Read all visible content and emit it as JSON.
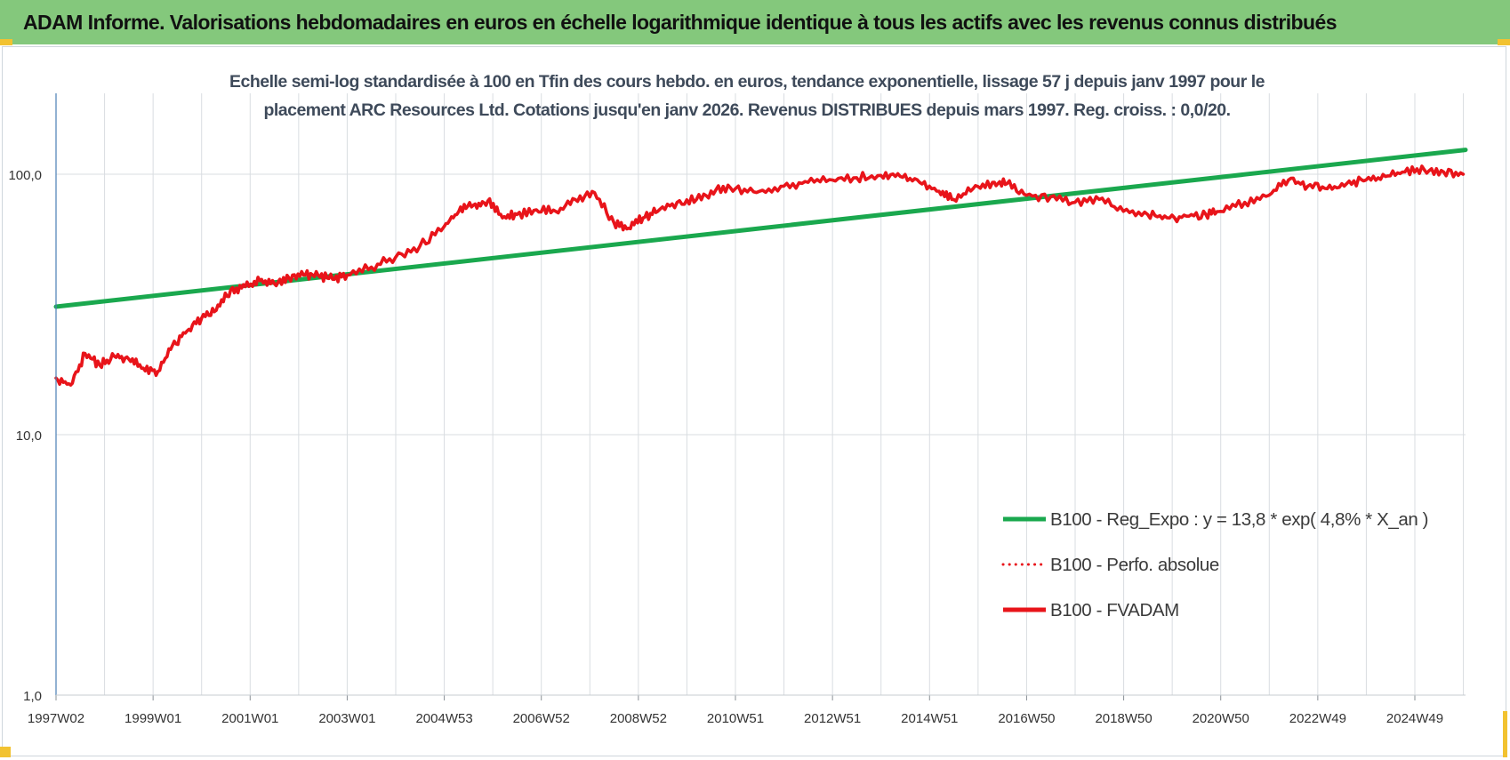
{
  "header": {
    "title": "ADAM Informe. Valorisations hebdomadaires en euros en échelle logarithmique identique à tous les actifs avec les revenus connus distribués"
  },
  "colors": {
    "banner": "#84c87c",
    "trend": "#1aa84e",
    "fvadam": "#e8141a",
    "perfo": "#e8141a",
    "grid": "#d9dde1",
    "axis_text": "#333333",
    "corner": "#f2c230"
  },
  "chart_data": {
    "type": "line",
    "title_lines": [
      "Echelle semi-log standardisée à 100 en Tfin des cours hebdo. en euros, tendance exponentielle, lissage 57 j depuis janv 1997 pour le",
      "placement ARC Resources Ltd. Cotations jusqu'en janv 2026. Revenus DISTRIBUES depuis mars 1997. Reg. croiss. : 0,0/20."
    ],
    "y_scale": "log",
    "ylim": [
      1,
      200
    ],
    "yticks": [
      {
        "value": 1,
        "label": "1,0"
      },
      {
        "value": 10,
        "label": "10,0"
      },
      {
        "value": 100,
        "label": "100,0"
      }
    ],
    "xlim": [
      1997.0,
      2026.05
    ],
    "xtick_labels": [
      "1997W02",
      "1999W01",
      "2001W01",
      "2003W01",
      "2004W53",
      "2006W52",
      "2008W52",
      "2010W51",
      "2012W51",
      "2014W51",
      "2016W50",
      "2018W50",
      "2020W50",
      "2022W49",
      "2024W49"
    ],
    "grid": true,
    "legend_position": "bottom-right",
    "series": [
      {
        "name": "B100 - Reg_Expo : y = 13,8 * exp( 4,8% *  X_an )",
        "style": "solid-green",
        "x": [
          1997.0,
          2026.05
        ],
        "y": [
          31,
          124
        ]
      },
      {
        "name": "B100 - Perfo. absolue",
        "style": "dotted-red",
        "x": [],
        "y": []
      },
      {
        "name": "B100 - FVADAM",
        "style": "solid-red",
        "x": [
          1997.0,
          1997.3,
          1997.6,
          1997.9,
          1998.2,
          1998.5,
          1998.8,
          1999.1,
          1999.4,
          1999.7,
          2000.0,
          2000.3,
          2000.6,
          2000.9,
          2001.2,
          2001.5,
          2001.8,
          2002.1,
          2002.4,
          2002.7,
          2003.0,
          2003.5,
          2004.0,
          2004.5,
          2005.0,
          2005.3,
          2005.6,
          2005.9,
          2006.2,
          2006.5,
          2006.9,
          2007.3,
          2007.7,
          2008.1,
          2008.5,
          2008.8,
          2009.1,
          2009.4,
          2009.8,
          2010.2,
          2010.6,
          2011.0,
          2011.5,
          2012.0,
          2012.5,
          2013.0,
          2013.5,
          2014.0,
          2014.4,
          2014.8,
          2015.2,
          2015.5,
          2015.9,
          2016.3,
          2016.6,
          2017.0,
          2017.5,
          2018.0,
          2018.5,
          2019.0,
          2019.5,
          2019.9,
          2020.3,
          2020.7,
          2021.0,
          2021.5,
          2022.0,
          2022.4,
          2022.8,
          2023.2,
          2023.6,
          2024.0,
          2024.4,
          2024.8,
          2025.2,
          2025.6,
          2026.0
        ],
        "y": [
          16.5,
          15.5,
          20.5,
          18.5,
          20,
          19.5,
          18,
          17.5,
          22,
          25,
          28,
          30,
          36,
          37,
          39,
          38,
          40,
          41,
          41,
          39.5,
          41,
          44,
          48,
          53,
          63,
          72,
          76,
          79,
          68,
          70,
          73,
          72,
          80,
          85,
          65,
          62,
          68,
          72,
          78,
          80,
          87,
          88,
          86,
          90,
          93,
          95,
          97,
          99,
          98,
          93,
          86,
          80,
          88,
          93,
          92,
          83,
          82,
          78,
          80,
          72,
          70,
          68,
          69,
          70,
          72,
          78,
          83,
          95,
          90,
          88,
          92,
          95,
          98,
          102,
          104,
          102,
          100
        ]
      }
    ]
  }
}
